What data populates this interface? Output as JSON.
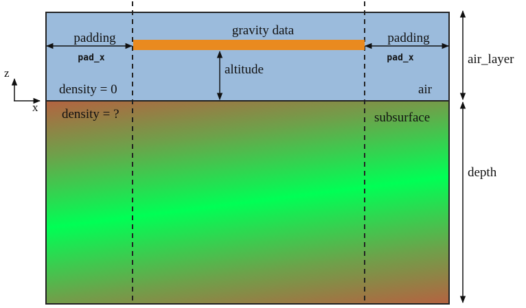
{
  "colors": {
    "air": "#9bbbdc",
    "gravity_data_bar": "#e98a1f",
    "subsurface_green": "#00ff55",
    "subsurface_red": "#e23a3a",
    "outline": "#222222"
  },
  "labels": {
    "gravity_data": "gravity data",
    "padding_left": "padding",
    "pad_x_left": "pad_x",
    "padding_right": "padding",
    "pad_x_right": "pad_x",
    "altitude": "altitude",
    "density_air": "density = 0",
    "air": "air",
    "density_subsurface": "density = ?",
    "subsurface": "subsurface",
    "air_layer": "air_layer",
    "depth": "depth",
    "axis_z": "z",
    "axis_x": "x"
  }
}
